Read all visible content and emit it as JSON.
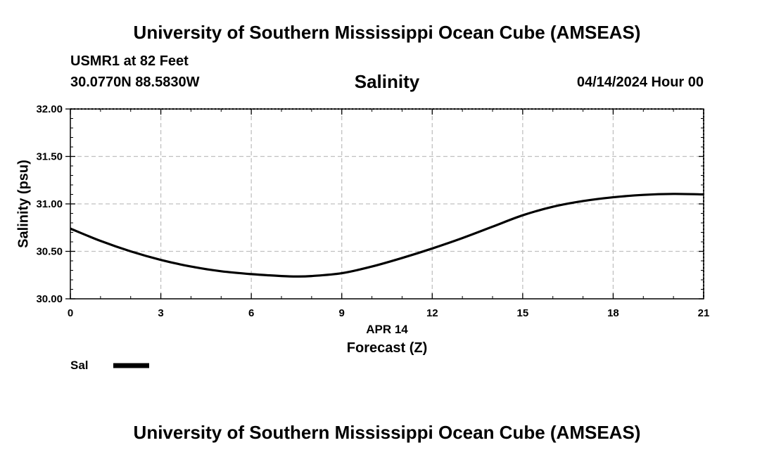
{
  "header": {
    "title": "University of Southern Mississippi Ocean Cube (AMSEAS)",
    "station": "USMR1 at 82 Feet",
    "coordinates": "30.0770N  88.5830W",
    "parameter": "Salinity",
    "datetime": "04/14/2024 Hour 00"
  },
  "footer": {
    "title": "University of Southern Mississippi Ocean Cube (AMSEAS)"
  },
  "chart_data": {
    "type": "line",
    "title": "Salinity",
    "xlabel": "Forecast (Z)",
    "xlabel_date": "APR 14",
    "ylabel": "Salinity (psu)",
    "xlim": [
      0,
      21
    ],
    "ylim": [
      30.0,
      32.0
    ],
    "xticks": [
      0,
      3,
      6,
      9,
      12,
      15,
      18,
      21
    ],
    "xtick_labels": [
      "0",
      "3",
      "6",
      "9",
      "12",
      "15",
      "18",
      "21"
    ],
    "yticks": [
      30.0,
      30.5,
      31.0,
      31.5,
      32.0
    ],
    "ytick_labels": [
      "30.00",
      "30.50",
      "31.00",
      "31.50",
      "32.00"
    ],
    "grid": true,
    "legend_position": "bottom-left",
    "series": [
      {
        "name": "Sal",
        "color": "#000000",
        "x": [
          0,
          1,
          2,
          3,
          4,
          5,
          6,
          7,
          7.5,
          8,
          9,
          10,
          11,
          12,
          13,
          14,
          15,
          16,
          17,
          18,
          19,
          20,
          21
        ],
        "values": [
          30.74,
          30.61,
          30.5,
          30.41,
          30.34,
          30.29,
          30.26,
          30.24,
          30.235,
          30.24,
          30.27,
          30.34,
          30.43,
          30.53,
          30.64,
          30.76,
          30.88,
          30.97,
          31.03,
          31.07,
          31.095,
          31.105,
          31.1
        ]
      }
    ]
  }
}
